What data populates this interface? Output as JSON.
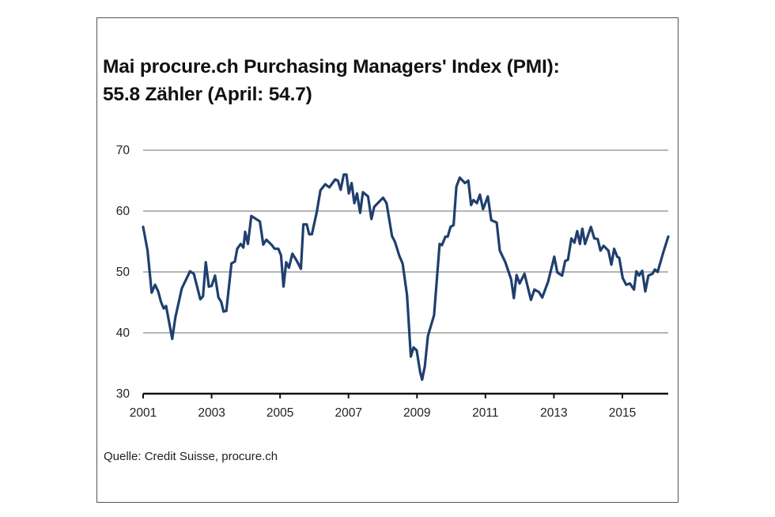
{
  "chart_data": {
    "type": "line",
    "title": [
      "Mai procure.ch Purchasing Managers' Index (PMI):",
      "55.8 Zähler (April: 54.7)"
    ],
    "xlabel": "",
    "ylabel": "",
    "xlim": [
      2001,
      2016.34
    ],
    "ylim": [
      30,
      70
    ],
    "yticks": [
      30,
      40,
      50,
      60,
      70
    ],
    "xticks": [
      2001,
      2003,
      2005,
      2007,
      2009,
      2011,
      2013,
      2015
    ],
    "grid": true,
    "line_color": "#1f3f6e",
    "source": "Quelle: Credit Suisse, procure.ch",
    "series": [
      {
        "name": "PMI",
        "points": [
          [
            2001.0,
            57.4
          ],
          [
            2001.13,
            53.5
          ],
          [
            2001.25,
            46.6
          ],
          [
            2001.35,
            47.9
          ],
          [
            2001.44,
            46.8
          ],
          [
            2001.52,
            45.1
          ],
          [
            2001.6,
            44.0
          ],
          [
            2001.67,
            44.4
          ],
          [
            2001.85,
            39.0
          ],
          [
            2001.94,
            42.5
          ],
          [
            2002.13,
            47.3
          ],
          [
            2002.37,
            50.1
          ],
          [
            2002.48,
            49.7
          ],
          [
            2002.67,
            45.5
          ],
          [
            2002.75,
            46.0
          ],
          [
            2002.83,
            51.6
          ],
          [
            2002.92,
            47.6
          ],
          [
            2003.0,
            47.7
          ],
          [
            2003.1,
            49.4
          ],
          [
            2003.2,
            45.8
          ],
          [
            2003.28,
            45.1
          ],
          [
            2003.35,
            43.5
          ],
          [
            2003.43,
            43.6
          ],
          [
            2003.58,
            51.4
          ],
          [
            2003.68,
            51.7
          ],
          [
            2003.75,
            53.8
          ],
          [
            2003.85,
            54.6
          ],
          [
            2003.93,
            54.0
          ],
          [
            2003.98,
            56.6
          ],
          [
            2004.06,
            54.6
          ],
          [
            2004.16,
            59.2
          ],
          [
            2004.41,
            58.3
          ],
          [
            2004.51,
            54.5
          ],
          [
            2004.6,
            55.3
          ],
          [
            2004.76,
            54.4
          ],
          [
            2004.84,
            53.8
          ],
          [
            2004.95,
            53.8
          ],
          [
            2005.03,
            52.7
          ],
          [
            2005.1,
            47.6
          ],
          [
            2005.18,
            51.6
          ],
          [
            2005.26,
            50.7
          ],
          [
            2005.36,
            53.0
          ],
          [
            2005.49,
            51.8
          ],
          [
            2005.61,
            50.5
          ],
          [
            2005.68,
            57.8
          ],
          [
            2005.78,
            57.8
          ],
          [
            2005.85,
            56.2
          ],
          [
            2005.93,
            56.2
          ],
          [
            2006.07,
            59.8
          ],
          [
            2006.18,
            63.4
          ],
          [
            2006.32,
            64.4
          ],
          [
            2006.44,
            63.9
          ],
          [
            2006.61,
            65.2
          ],
          [
            2006.69,
            65.0
          ],
          [
            2006.77,
            63.5
          ],
          [
            2006.86,
            66.0
          ],
          [
            2006.94,
            66.0
          ],
          [
            2007.01,
            62.9
          ],
          [
            2007.09,
            64.6
          ],
          [
            2007.17,
            61.3
          ],
          [
            2007.25,
            62.9
          ],
          [
            2007.34,
            59.7
          ],
          [
            2007.42,
            63.1
          ],
          [
            2007.57,
            62.4
          ],
          [
            2007.67,
            58.7
          ],
          [
            2007.75,
            60.7
          ],
          [
            2008.01,
            62.2
          ],
          [
            2008.11,
            61.3
          ],
          [
            2008.27,
            55.9
          ],
          [
            2008.36,
            54.9
          ],
          [
            2008.48,
            52.7
          ],
          [
            2008.58,
            51.4
          ],
          [
            2008.71,
            46.2
          ],
          [
            2008.82,
            36.1
          ],
          [
            2008.9,
            37.6
          ],
          [
            2008.99,
            37.1
          ],
          [
            2009.09,
            33.6
          ],
          [
            2009.15,
            32.3
          ],
          [
            2009.23,
            34.5
          ],
          [
            2009.32,
            39.5
          ],
          [
            2009.5,
            42.9
          ],
          [
            2009.66,
            54.6
          ],
          [
            2009.73,
            54.4
          ],
          [
            2009.83,
            55.8
          ],
          [
            2009.9,
            55.8
          ],
          [
            2009.98,
            57.4
          ],
          [
            2010.07,
            57.7
          ],
          [
            2010.15,
            64.0
          ],
          [
            2010.25,
            65.5
          ],
          [
            2010.4,
            64.6
          ],
          [
            2010.5,
            65.0
          ],
          [
            2010.58,
            61.0
          ],
          [
            2010.65,
            61.8
          ],
          [
            2010.75,
            61.3
          ],
          [
            2010.84,
            62.7
          ],
          [
            2010.93,
            60.3
          ],
          [
            2011.07,
            62.4
          ],
          [
            2011.17,
            58.5
          ],
          [
            2011.33,
            58.1
          ],
          [
            2011.42,
            53.5
          ],
          [
            2011.58,
            51.6
          ],
          [
            2011.75,
            48.8
          ],
          [
            2011.83,
            45.7
          ],
          [
            2011.91,
            49.5
          ],
          [
            2012.0,
            48.1
          ],
          [
            2012.14,
            49.7
          ],
          [
            2012.33,
            45.4
          ],
          [
            2012.43,
            47.1
          ],
          [
            2012.56,
            46.7
          ],
          [
            2012.66,
            45.8
          ],
          [
            2012.83,
            48.4
          ],
          [
            2013.01,
            52.5
          ],
          [
            2013.1,
            49.9
          ],
          [
            2013.24,
            49.4
          ],
          [
            2013.33,
            51.8
          ],
          [
            2013.41,
            52.0
          ],
          [
            2013.51,
            55.5
          ],
          [
            2013.6,
            54.8
          ],
          [
            2013.68,
            56.7
          ],
          [
            2013.76,
            54.6
          ],
          [
            2013.83,
            57.1
          ],
          [
            2013.91,
            54.6
          ],
          [
            2014.08,
            57.4
          ],
          [
            2014.18,
            55.5
          ],
          [
            2014.28,
            55.4
          ],
          [
            2014.36,
            53.5
          ],
          [
            2014.45,
            54.3
          ],
          [
            2014.59,
            53.5
          ],
          [
            2014.68,
            51.2
          ],
          [
            2014.76,
            53.8
          ],
          [
            2014.85,
            52.5
          ],
          [
            2014.91,
            52.3
          ],
          [
            2015.01,
            49.0
          ],
          [
            2015.11,
            47.9
          ],
          [
            2015.22,
            48.1
          ],
          [
            2015.34,
            47.1
          ],
          [
            2015.41,
            50.1
          ],
          [
            2015.49,
            49.4
          ],
          [
            2015.58,
            50.2
          ],
          [
            2015.67,
            46.8
          ],
          [
            2015.76,
            49.4
          ],
          [
            2015.88,
            49.7
          ],
          [
            2015.95,
            50.4
          ],
          [
            2016.03,
            50.0
          ],
          [
            2016.19,
            53.1
          ],
          [
            2016.34,
            55.8
          ]
        ]
      }
    ]
  }
}
